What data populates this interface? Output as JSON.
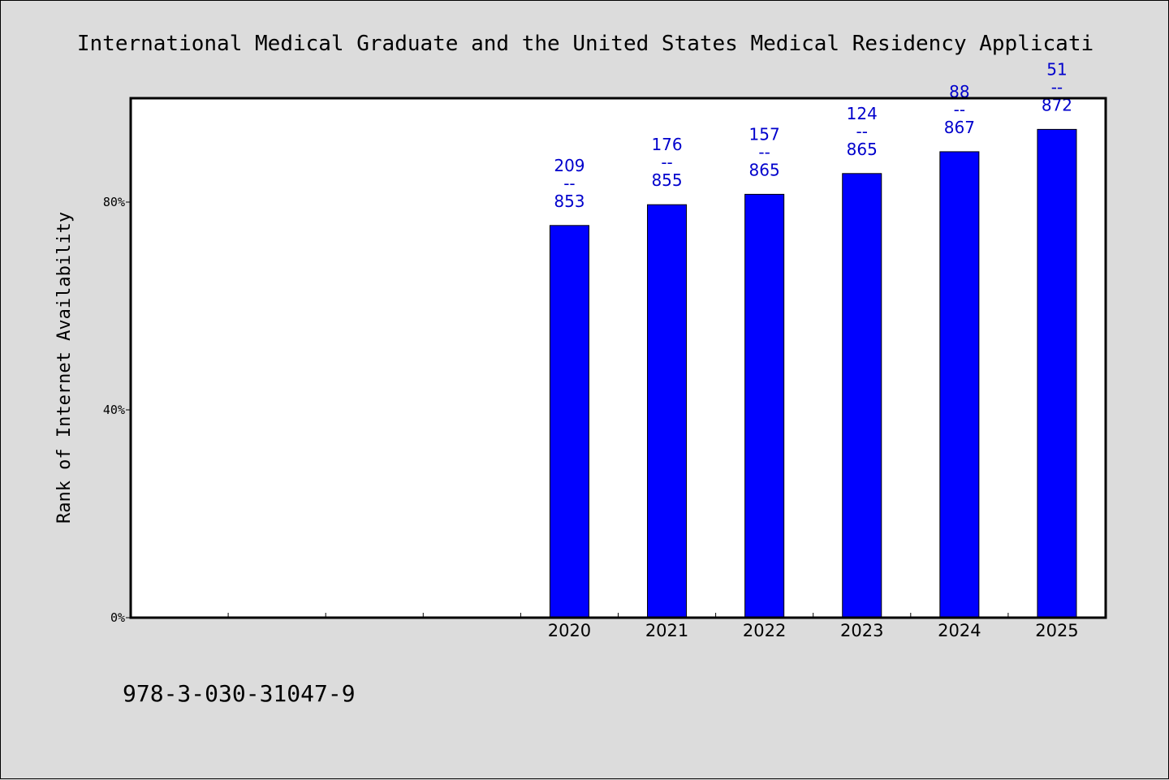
{
  "chart_data": {
    "type": "bar",
    "title": "International Medical Graduate and the United States Medical Residency Applicati",
    "ylabel": "Rank of Internet Availability",
    "xlabel": "",
    "x_slots": [
      "",
      "",
      "",
      "",
      "2020",
      "2021",
      "2022",
      "2023",
      "2024",
      "2025"
    ],
    "categories": [
      "2020",
      "2021",
      "2022",
      "2023",
      "2024",
      "2025"
    ],
    "values": [
      75.5,
      79.5,
      81.5,
      85.5,
      89.7,
      94.0
    ],
    "data_labels": [
      {
        "top": "209",
        "sep": "--",
        "bottom": "853"
      },
      {
        "top": "176",
        "sep": "--",
        "bottom": "855"
      },
      {
        "top": "157",
        "sep": "--",
        "bottom": "865"
      },
      {
        "top": "124",
        "sep": "--",
        "bottom": "865"
      },
      {
        "top": "88",
        "sep": "--",
        "bottom": "867"
      },
      {
        "top": "51",
        "sep": "--",
        "bottom": "872"
      }
    ],
    "ylim": [
      0,
      100
    ],
    "yticks": [
      {
        "value": 0,
        "label": "0%"
      },
      {
        "value": 40,
        "label": "40%"
      },
      {
        "value": 80,
        "label": "80%"
      }
    ],
    "grid": false,
    "bar_color": "#0000ff",
    "label_color": "#0000cc",
    "background_color": "#dcdcdc",
    "plot_background": "#ffffff"
  },
  "footer": {
    "isbn": "978-3-030-31047-9"
  }
}
